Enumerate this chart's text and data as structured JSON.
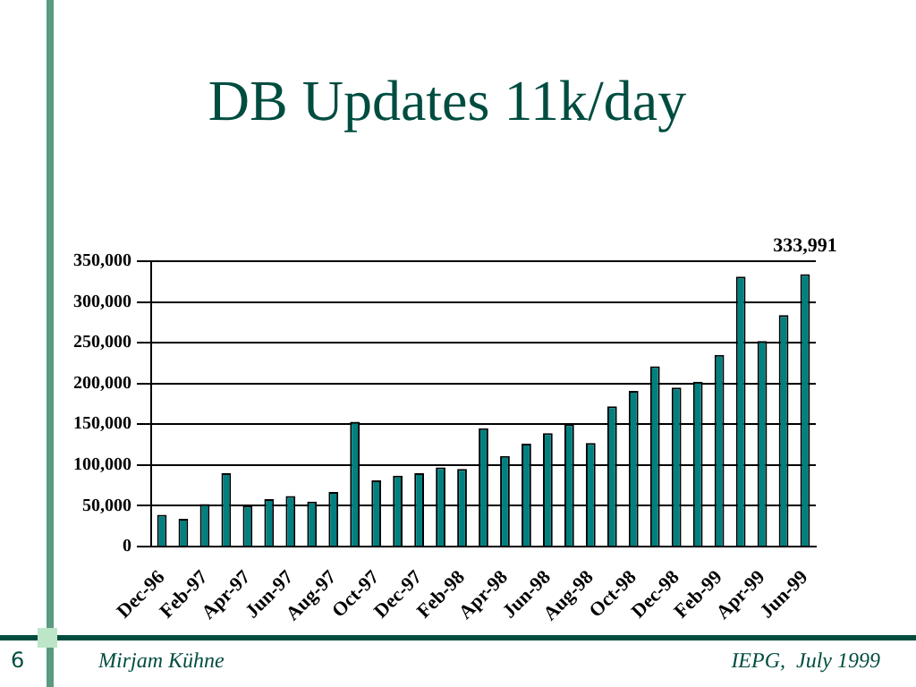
{
  "chart_data": {
    "type": "bar",
    "title": "DB Updates 11k/day",
    "categories": [
      "Dec-96",
      null,
      "Feb-97",
      null,
      "Apr-97",
      null,
      "Jun-97",
      null,
      "Aug-97",
      null,
      "Oct-97",
      null,
      "Dec-97",
      null,
      "Feb-98",
      null,
      "Apr-98",
      null,
      "Jun-98",
      null,
      "Aug-98",
      null,
      "Oct-98",
      null,
      "Dec-98",
      null,
      "Feb-99",
      null,
      "Apr-99",
      null,
      "Jun-99"
    ],
    "values": [
      39000,
      34000,
      52000,
      90000,
      50000,
      58000,
      62000,
      55000,
      67000,
      153000,
      81000,
      87000,
      90000,
      97000,
      95000,
      145000,
      111000,
      126000,
      139000,
      150000,
      127000,
      172000,
      191000,
      221000,
      195000,
      202000,
      235000,
      331000,
      252000,
      284000,
      333991
    ],
    "value_labels": [
      null,
      null,
      null,
      null,
      null,
      null,
      null,
      null,
      null,
      null,
      null,
      null,
      null,
      null,
      null,
      null,
      null,
      null,
      null,
      null,
      null,
      null,
      null,
      null,
      null,
      null,
      null,
      null,
      null,
      null,
      "333,991"
    ],
    "color": "#008080",
    "ylim": [
      0,
      350000
    ],
    "yticks": [
      0,
      {
        "value": 50000,
        "label": "50,000"
      },
      {
        "value": 100000,
        "label": "100,000"
      },
      {
        "value": 150000,
        "label": "150,000"
      },
      {
        "value": 200000,
        "label": "200,000"
      },
      {
        "value": 250000,
        "label": "250,000"
      },
      {
        "value": 300000,
        "label": "300,000"
      },
      {
        "value": 350000,
        "label": "350,000"
      }
    ],
    "grid": "y",
    "annotations": [
      "6",
      "Mirjam Kühne",
      "IEPG,  July 1999"
    ]
  }
}
